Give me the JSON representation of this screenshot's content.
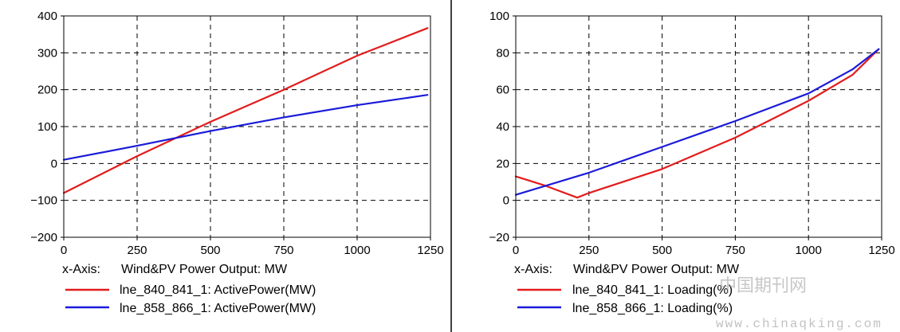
{
  "charts": [
    {
      "type": "line",
      "xlim": [
        0,
        1250
      ],
      "ylim": [
        -200,
        400
      ],
      "x_ticks": [
        0,
        250,
        500,
        750,
        1000,
        1250
      ],
      "y_ticks": [
        -200,
        -100,
        0,
        100,
        200,
        300,
        400
      ],
      "grid": true,
      "legend_placement": "below",
      "x_axis_label": "x-Axis:",
      "x_axis_quantity": "Wind&PV Power Output: MW",
      "series": [
        {
          "name": "lne_840_841_1: ActivePower(MW)",
          "color": "#e31b1b",
          "x": [
            0,
            250,
            500,
            750,
            1000,
            1240
          ],
          "y": [
            -80,
            20,
            113,
            200,
            292,
            367
          ]
        },
        {
          "name": "lne_858_866_1: ActivePower(MW)",
          "color": "#1b1bd9",
          "x": [
            0,
            250,
            500,
            750,
            1000,
            1240
          ],
          "y": [
            10,
            48,
            88,
            125,
            158,
            186
          ]
        }
      ]
    },
    {
      "type": "line",
      "xlim": [
        0,
        1250
      ],
      "ylim": [
        -20,
        100
      ],
      "x_ticks": [
        0,
        250,
        500,
        750,
        1000,
        1250
      ],
      "y_ticks": [
        -20,
        0,
        20,
        40,
        60,
        80,
        100
      ],
      "grid": true,
      "legend_placement": "below",
      "x_axis_label": "x-Axis:",
      "x_axis_quantity": "Wind&PV Power Output: MW",
      "series": [
        {
          "name": "lne_840_841_1: Loading(%)",
          "color": "#e31b1b",
          "x": [
            0,
            100,
            210,
            250,
            500,
            750,
            1000,
            1150,
            1240
          ],
          "y": [
            13,
            8,
            1.5,
            4,
            17,
            34,
            54,
            68,
            82
          ]
        },
        {
          "name": "lne_858_866_1: Loading(%)",
          "color": "#1b1bd9",
          "x": [
            0,
            250,
            500,
            750,
            1000,
            1150,
            1240
          ],
          "y": [
            3,
            15,
            29,
            43,
            58,
            71,
            82
          ]
        }
      ]
    }
  ],
  "watermark": {
    "cn": "中国期刊网",
    "url": "www.chinaqking.com"
  }
}
